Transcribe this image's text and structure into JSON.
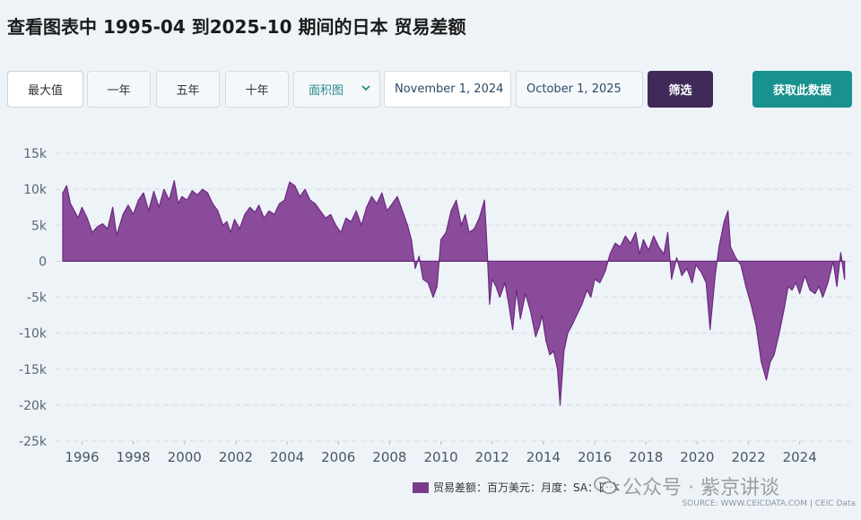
{
  "page": {
    "title": "查看图表中 1995-04 到2025-10 期间的日本 贸易差额"
  },
  "toolbar": {
    "ranges": [
      "最大值",
      "一年",
      "五年",
      "十年"
    ],
    "active_range": "最大值",
    "chart_type": "面积图",
    "start_date": "November 1, 2024",
    "end_date": "October 1, 2025",
    "filter_label": "筛选",
    "get_data_label": "获取此数据"
  },
  "legend": {
    "label": "贸易差额：百万美元：月度：SA：日本"
  },
  "watermark": {
    "text": "公众号 · 紫京讲谈"
  },
  "source": {
    "text": "SOURCE: WWW.CEICDATA.COM | CEIC Data"
  },
  "colors": {
    "area_fill": "#8a4c9a",
    "area_line": "#6a2a7e",
    "filter_bg": "#3f2a5a",
    "get_data_bg": "#18918f"
  },
  "chart_data": {
    "type": "area",
    "title": "",
    "xlabel": "",
    "ylabel": "",
    "xlim": [
      1995.25,
      2025.83
    ],
    "ylim": [
      -25000,
      15000
    ],
    "yticks": [
      15000,
      10000,
      5000,
      0,
      -5000,
      -10000,
      -15000,
      -20000,
      -25000
    ],
    "ytick_labels": [
      "15k",
      "10k",
      "5k",
      "0",
      "-5k",
      "-10k",
      "-15k",
      "-20k",
      "-25k"
    ],
    "xticks": [
      1996,
      1998,
      2000,
      2002,
      2004,
      2006,
      2008,
      2010,
      2012,
      2014,
      2016,
      2018,
      2020,
      2022,
      2024
    ],
    "xtick_labels": [
      "1996",
      "1998",
      "2000",
      "2002",
      "2004",
      "2006",
      "2008",
      "2010",
      "2012",
      "2014",
      "2016",
      "2018",
      "2020",
      "2022",
      "2024"
    ],
    "grid": true,
    "legend_position": "bottom-right",
    "series": [
      {
        "name": "贸易差额：百万美元：月度：SA：日本",
        "points": [
          [
            1995.25,
            9500
          ],
          [
            1995.4,
            10500
          ],
          [
            1995.55,
            8000
          ],
          [
            1995.7,
            7000
          ],
          [
            1995.85,
            6000
          ],
          [
            1996.0,
            7500
          ],
          [
            1996.2,
            6000
          ],
          [
            1996.4,
            4000
          ],
          [
            1996.6,
            4800
          ],
          [
            1996.8,
            5200
          ],
          [
            1997.0,
            4500
          ],
          [
            1997.2,
            7500
          ],
          [
            1997.35,
            3600
          ],
          [
            1997.6,
            6500
          ],
          [
            1997.8,
            7800
          ],
          [
            1998.0,
            6500
          ],
          [
            1998.2,
            8500
          ],
          [
            1998.4,
            9500
          ],
          [
            1998.6,
            7000
          ],
          [
            1998.8,
            9700
          ],
          [
            1999.0,
            7500
          ],
          [
            1999.2,
            10000
          ],
          [
            1999.4,
            8500
          ],
          [
            1999.6,
            11200
          ],
          [
            1999.75,
            8000
          ],
          [
            1999.9,
            9000
          ],
          [
            2000.1,
            8500
          ],
          [
            2000.3,
            9800
          ],
          [
            2000.5,
            9200
          ],
          [
            2000.7,
            10000
          ],
          [
            2000.9,
            9500
          ],
          [
            2001.1,
            8000
          ],
          [
            2001.3,
            7000
          ],
          [
            2001.5,
            5000
          ],
          [
            2001.65,
            5500
          ],
          [
            2001.8,
            4000
          ],
          [
            2001.95,
            5800
          ],
          [
            2002.15,
            4500
          ],
          [
            2002.35,
            6500
          ],
          [
            2002.55,
            7500
          ],
          [
            2002.75,
            6800
          ],
          [
            2002.9,
            7800
          ],
          [
            2003.1,
            6000
          ],
          [
            2003.3,
            7000
          ],
          [
            2003.5,
            6500
          ],
          [
            2003.7,
            8000
          ],
          [
            2003.9,
            8500
          ],
          [
            2004.1,
            11000
          ],
          [
            2004.3,
            10500
          ],
          [
            2004.5,
            9000
          ],
          [
            2004.7,
            10000
          ],
          [
            2004.9,
            8500
          ],
          [
            2005.1,
            8000
          ],
          [
            2005.3,
            7000
          ],
          [
            2005.5,
            6000
          ],
          [
            2005.7,
            6500
          ],
          [
            2005.9,
            5000
          ],
          [
            2006.1,
            4000
          ],
          [
            2006.3,
            6000
          ],
          [
            2006.5,
            5500
          ],
          [
            2006.7,
            7000
          ],
          [
            2006.9,
            5000
          ],
          [
            2007.1,
            7500
          ],
          [
            2007.3,
            9000
          ],
          [
            2007.5,
            8000
          ],
          [
            2007.7,
            9500
          ],
          [
            2007.9,
            7000
          ],
          [
            2008.1,
            8000
          ],
          [
            2008.3,
            9000
          ],
          [
            2008.5,
            7000
          ],
          [
            2008.7,
            5000
          ],
          [
            2008.85,
            3000
          ],
          [
            2009.0,
            -1000
          ],
          [
            2009.15,
            700
          ],
          [
            2009.3,
            -2500
          ],
          [
            2009.5,
            -3000
          ],
          [
            2009.7,
            -5000
          ],
          [
            2009.85,
            -3500
          ],
          [
            2010.0,
            3000
          ],
          [
            2010.2,
            4000
          ],
          [
            2010.4,
            7000
          ],
          [
            2010.6,
            8500
          ],
          [
            2010.8,
            5000
          ],
          [
            2010.95,
            6500
          ],
          [
            2011.1,
            4000
          ],
          [
            2011.3,
            4500
          ],
          [
            2011.5,
            6000
          ],
          [
            2011.7,
            8500
          ],
          [
            2011.8,
            2000
          ],
          [
            2011.9,
            -6000
          ],
          [
            2012.0,
            -2500
          ],
          [
            2012.15,
            -3500
          ],
          [
            2012.3,
            -5000
          ],
          [
            2012.5,
            -3000
          ],
          [
            2012.65,
            -6000
          ],
          [
            2012.8,
            -9500
          ],
          [
            2012.95,
            -4000
          ],
          [
            2013.1,
            -8000
          ],
          [
            2013.3,
            -4500
          ],
          [
            2013.5,
            -7000
          ],
          [
            2013.7,
            -10500
          ],
          [
            2013.85,
            -9000
          ],
          [
            2013.95,
            -7500
          ],
          [
            2014.1,
            -11000
          ],
          [
            2014.25,
            -13000
          ],
          [
            2014.4,
            -12500
          ],
          [
            2014.55,
            -15000
          ],
          [
            2014.65,
            -20000
          ],
          [
            2014.8,
            -12500
          ],
          [
            2014.95,
            -10000
          ],
          [
            2015.1,
            -9000
          ],
          [
            2015.3,
            -7500
          ],
          [
            2015.5,
            -6000
          ],
          [
            2015.7,
            -4000
          ],
          [
            2015.85,
            -5000
          ],
          [
            2016.0,
            -2500
          ],
          [
            2016.2,
            -3000
          ],
          [
            2016.4,
            -1500
          ],
          [
            2016.6,
            1000
          ],
          [
            2016.8,
            2500
          ],
          [
            2017.0,
            2000
          ],
          [
            2017.2,
            3500
          ],
          [
            2017.4,
            2500
          ],
          [
            2017.6,
            4000
          ],
          [
            2017.75,
            1000
          ],
          [
            2017.9,
            3000
          ],
          [
            2018.1,
            1500
          ],
          [
            2018.3,
            3500
          ],
          [
            2018.5,
            2000
          ],
          [
            2018.7,
            1000
          ],
          [
            2018.85,
            4000
          ],
          [
            2019.0,
            -2500
          ],
          [
            2019.2,
            500
          ],
          [
            2019.4,
            -2000
          ],
          [
            2019.6,
            -1000
          ],
          [
            2019.8,
            -3000
          ],
          [
            2019.95,
            -500
          ],
          [
            2020.15,
            -1500
          ],
          [
            2020.35,
            -3000
          ],
          [
            2020.5,
            -9500
          ],
          [
            2020.7,
            -2000
          ],
          [
            2020.85,
            2000
          ],
          [
            2021.05,
            5500
          ],
          [
            2021.2,
            7000
          ],
          [
            2021.3,
            2000
          ],
          [
            2021.5,
            500
          ],
          [
            2021.7,
            -500
          ],
          [
            2021.9,
            -3500
          ],
          [
            2022.1,
            -6000
          ],
          [
            2022.3,
            -9000
          ],
          [
            2022.5,
            -14000
          ],
          [
            2022.7,
            -16500
          ],
          [
            2022.85,
            -14000
          ],
          [
            2023.0,
            -13000
          ],
          [
            2023.2,
            -10000
          ],
          [
            2023.4,
            -6500
          ],
          [
            2023.55,
            -3500
          ],
          [
            2023.7,
            -4000
          ],
          [
            2023.85,
            -3000
          ],
          [
            2024.0,
            -4500
          ],
          [
            2024.2,
            -2000
          ],
          [
            2024.4,
            -4000
          ],
          [
            2024.6,
            -4500
          ],
          [
            2024.75,
            -3500
          ],
          [
            2024.9,
            -5000
          ],
          [
            2025.1,
            -3000
          ],
          [
            2025.3,
            0
          ],
          [
            2025.45,
            -3500
          ],
          [
            2025.6,
            1200
          ],
          [
            2025.75,
            -2500
          ]
        ]
      }
    ]
  }
}
